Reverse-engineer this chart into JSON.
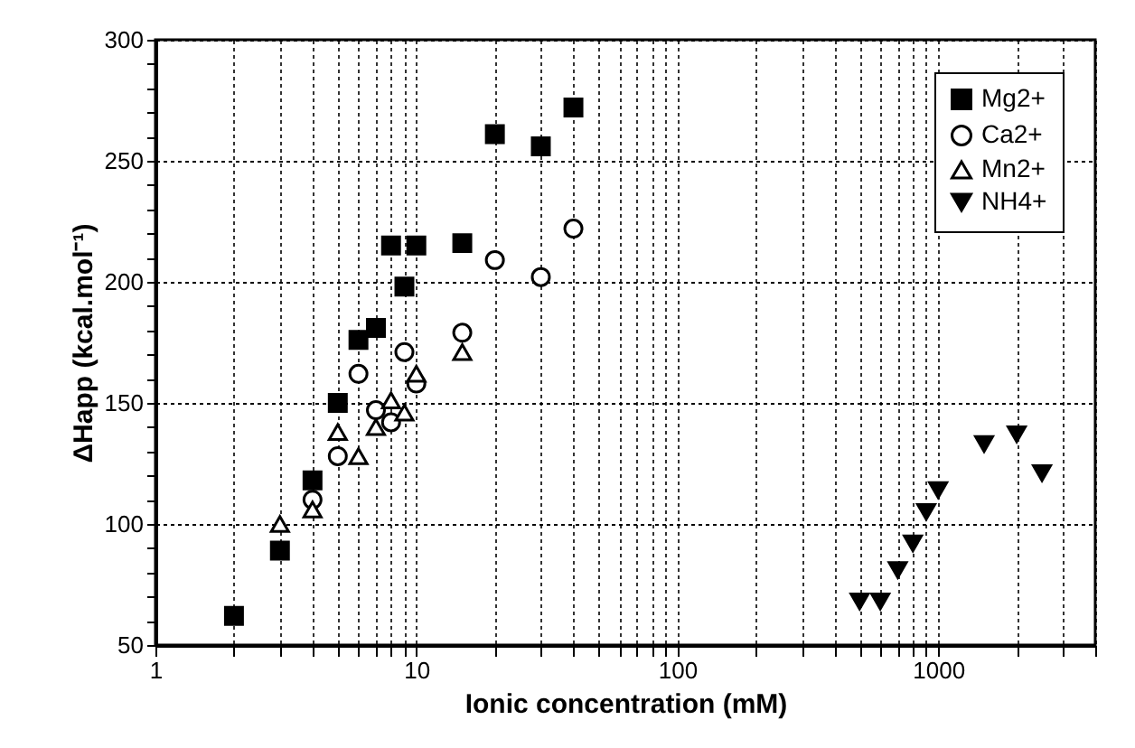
{
  "chart_data": {
    "type": "scatter",
    "xlabel": "Ionic concentration (mM)",
    "ylabel": "ΔHapp (kcal.mol⁻¹)",
    "log": "x",
    "xlim": [
      1,
      4000
    ],
    "ylim": [
      50,
      300
    ],
    "xticks": [
      1,
      {
        "value": 2,
        "label": null
      },
      {
        "value": 3,
        "label": null
      },
      {
        "value": 4,
        "label": null
      },
      {
        "value": 5,
        "label": null
      },
      {
        "value": 6,
        "label": null
      },
      {
        "value": 7,
        "label": null
      },
      {
        "value": 8,
        "label": null
      },
      {
        "value": 9,
        "label": null
      },
      10,
      {
        "value": 20,
        "label": null
      },
      {
        "value": 30,
        "label": null
      },
      {
        "value": 40,
        "label": null
      },
      {
        "value": 50,
        "label": null
      },
      {
        "value": 60,
        "label": null
      },
      {
        "value": 70,
        "label": null
      },
      {
        "value": 80,
        "label": null
      },
      {
        "value": 90,
        "label": null
      },
      100,
      {
        "value": 200,
        "label": null
      },
      {
        "value": 300,
        "label": null
      },
      {
        "value": 400,
        "label": null
      },
      {
        "value": 500,
        "label": null
      },
      {
        "value": 600,
        "label": null
      },
      {
        "value": 700,
        "label": null
      },
      {
        "value": 800,
        "label": null
      },
      {
        "value": 900,
        "label": null
      },
      1000,
      {
        "value": 2000,
        "label": null
      },
      {
        "value": 3000,
        "label": null
      },
      {
        "value": 4000,
        "label": null
      }
    ],
    "yticks": [
      50,
      {
        "value": 60,
        "label": null
      },
      {
        "value": 70,
        "label": null
      },
      {
        "value": 80,
        "label": null
      },
      {
        "value": 90,
        "label": null
      },
      100,
      {
        "value": 110,
        "label": null
      },
      {
        "value": 120,
        "label": null
      },
      {
        "value": 130,
        "label": null
      },
      {
        "value": 140,
        "label": null
      },
      150,
      {
        "value": 160,
        "label": null
      },
      {
        "value": 170,
        "label": null
      },
      {
        "value": 180,
        "label": null
      },
      {
        "value": 190,
        "label": null
      },
      200,
      {
        "value": 210,
        "label": null
      },
      {
        "value": 220,
        "label": null
      },
      {
        "value": 230,
        "label": null
      },
      {
        "value": 240,
        "label": null
      },
      250,
      {
        "value": 260,
        "label": null
      },
      {
        "value": 270,
        "label": null
      },
      {
        "value": 280,
        "label": null
      },
      {
        "value": 290,
        "label": null
      },
      300
    ],
    "grid": true,
    "legend": "top right",
    "series": [
      {
        "name": "Mg2+",
        "color": "#000000",
        "marker": "square",
        "x": [
          2,
          3,
          4,
          5,
          6,
          7,
          8,
          9,
          10,
          15,
          20,
          30,
          40
        ],
        "values": [
          62,
          89,
          118,
          150,
          176,
          181,
          215,
          198,
          215,
          216,
          261,
          256,
          272
        ]
      },
      {
        "name": "Ca2+",
        "color": "#000000",
        "marker": "circle",
        "x": [
          4,
          5,
          6,
          7,
          8,
          9,
          10,
          15,
          20,
          30,
          40
        ],
        "values": [
          110,
          128,
          162,
          147,
          142,
          171,
          158,
          179,
          209,
          202,
          222
        ]
      },
      {
        "name": "Mn2+",
        "color": "#000000",
        "marker": "triangle",
        "x": [
          3,
          4,
          5,
          6,
          7,
          8,
          9,
          10,
          15
        ],
        "values": [
          100,
          106,
          138,
          128,
          140,
          151,
          146,
          162,
          171
        ]
      },
      {
        "name": "NH4+",
        "color": "#000000",
        "marker": "triangle-down",
        "x": [
          500,
          600,
          700,
          800,
          900,
          1000,
          1500,
          2000,
          2500
        ],
        "values": [
          68,
          68,
          81,
          92,
          105,
          114,
          133,
          137,
          121
        ]
      }
    ]
  }
}
